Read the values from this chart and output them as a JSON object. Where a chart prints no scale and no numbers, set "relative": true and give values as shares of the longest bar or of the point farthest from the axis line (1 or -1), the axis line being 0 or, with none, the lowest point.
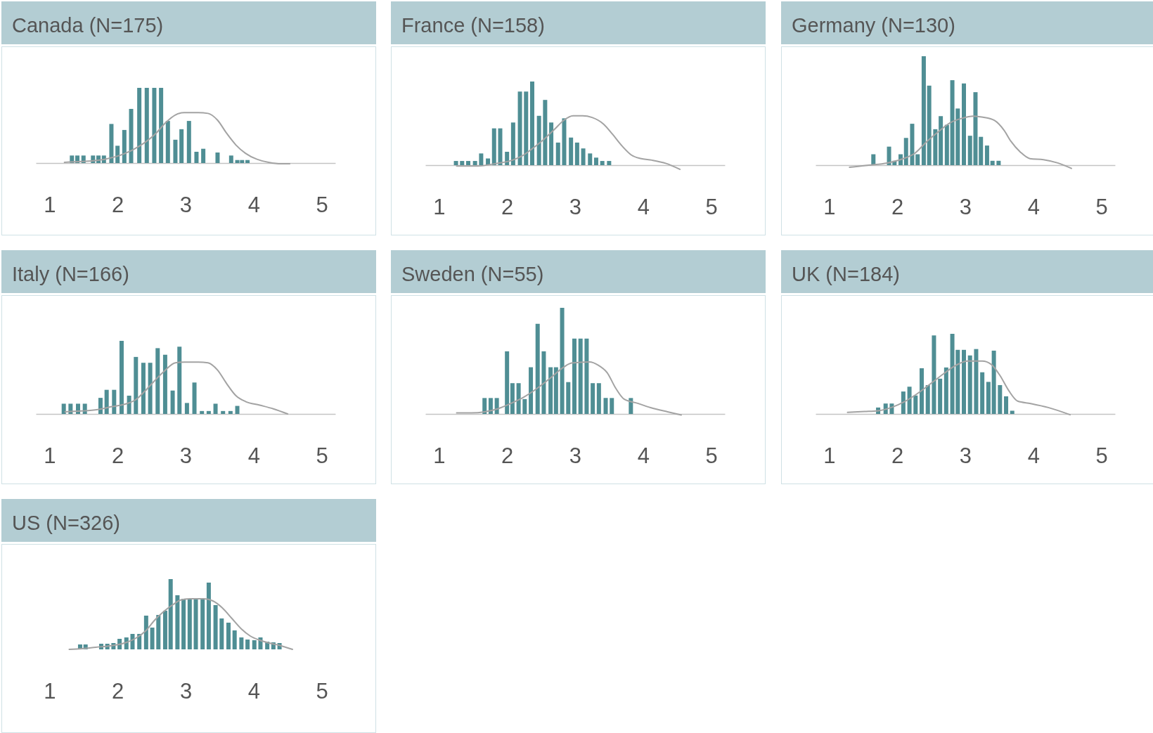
{
  "chart_data": [
    {
      "type": "bar",
      "title": "Canada (N=175)",
      "relative": true,
      "xlim": [
        0.8,
        5.2
      ],
      "xticks": [
        1,
        2,
        3,
        4,
        5
      ],
      "series": [
        {
          "color": "#4f8e94",
          "x": [
            1.33,
            1.41,
            1.5,
            1.64,
            1.72,
            1.8,
            1.91,
            2.0,
            2.1,
            2.2,
            2.32,
            2.43,
            2.54,
            2.64,
            2.74,
            2.85,
            2.94,
            3.05,
            3.16,
            3.26,
            3.47,
            3.67,
            3.76,
            3.83,
            3.91
          ],
          "values": [
            0.1,
            0.1,
            0.1,
            0.1,
            0.1,
            0.1,
            0.52,
            0.23,
            0.44,
            0.72,
            1,
            1,
            1,
            1,
            0.56,
            0.31,
            0.45,
            0.56,
            0.15,
            0.19,
            0.14,
            0.1,
            0.04,
            0.04,
            0.04
          ]
        },
        {
          "type": "line",
          "color": "#a3a3a3",
          "x": [
            1.22,
            1.47,
            1.81,
            2.09,
            2.33,
            2.57,
            2.71,
            2.85,
            2.98,
            3.19,
            3.33,
            3.47,
            3.6,
            3.74,
            3.88,
            4.05,
            4.22,
            4.4,
            4.53
          ],
          "values": [
            0.01,
            0.02,
            0.05,
            0.12,
            0.23,
            0.4,
            0.54,
            0.64,
            0.67,
            0.67,
            0.66,
            0.57,
            0.4,
            0.24,
            0.13,
            0.05,
            0.01,
            -0.01,
            -0.01
          ]
        }
      ]
    },
    {
      "type": "bar",
      "title": "France (N=158)",
      "relative": true,
      "xlim": [
        0.8,
        5.2
      ],
      "xticks": [
        1,
        2,
        3,
        4,
        5
      ],
      "series": [
        {
          "color": "#4f8e94",
          "x": [
            1.25,
            1.34,
            1.43,
            1.53,
            1.62,
            1.72,
            1.81,
            1.9,
            2.0,
            2.09,
            2.19,
            2.28,
            2.37,
            2.47,
            2.56,
            2.65,
            2.75,
            2.84,
            2.94,
            3.03,
            3.12,
            3.22,
            3.31,
            3.4,
            3.5
          ],
          "values": [
            0.05,
            0.05,
            0.05,
            0.05,
            0.14,
            0.08,
            0.44,
            0.44,
            0.16,
            0.51,
            0.88,
            0.88,
            1,
            0.59,
            0.78,
            0.51,
            0.27,
            0.56,
            0.33,
            0.27,
            0.2,
            0.14,
            0.09,
            0.05,
            0.05
          ]
        },
        {
          "type": "line",
          "color": "#a3a3a3",
          "x": [
            1.26,
            1.57,
            1.84,
            2.08,
            2.22,
            2.36,
            2.53,
            2.7,
            2.84,
            2.97,
            3.11,
            3.25,
            3.42,
            3.55,
            3.69,
            3.83,
            3.96,
            4.13,
            4.34,
            4.54
          ],
          "values": [
            -0.01,
            -0.01,
            0.02,
            0.06,
            0.11,
            0.19,
            0.3,
            0.43,
            0.54,
            0.59,
            0.59,
            0.57,
            0.49,
            0.37,
            0.23,
            0.12,
            0.08,
            0.06,
            0.02,
            -0.05
          ]
        }
      ]
    },
    {
      "type": "bar",
      "title": "Germany (N=130)",
      "relative": true,
      "xlim": [
        0.8,
        5.2
      ],
      "xticks": [
        1,
        2,
        3,
        4,
        5
      ],
      "series": [
        {
          "color": "#4f8e94",
          "x": [
            1.65,
            1.88,
            1.96,
            2.05,
            2.13,
            2.22,
            2.3,
            2.39,
            2.47,
            2.56,
            2.64,
            2.73,
            2.81,
            2.89,
            2.98,
            3.07,
            3.15,
            3.23,
            3.32,
            3.4,
            3.49
          ],
          "values": [
            0.1,
            0.17,
            0.04,
            0.1,
            0.25,
            0.38,
            0.1,
            1,
            0.73,
            0.33,
            0.45,
            0.37,
            0.78,
            0.52,
            0.75,
            0.27,
            0.67,
            0.26,
            0.18,
            0.04,
            0.04
          ]
        },
        {
          "type": "line",
          "color": "#a3a3a3",
          "x": [
            1.3,
            1.58,
            1.85,
            2.09,
            2.26,
            2.44,
            2.61,
            2.78,
            2.95,
            3.12,
            3.26,
            3.43,
            3.57,
            3.67,
            3.81,
            3.95,
            4.15,
            4.36,
            4.56
          ],
          "values": [
            -0.02,
            0,
            0.02,
            0.06,
            0.11,
            0.22,
            0.31,
            0.39,
            0.43,
            0.45,
            0.44,
            0.41,
            0.32,
            0.22,
            0.12,
            0.06,
            0.05,
            0.02,
            -0.03
          ]
        }
      ]
    },
    {
      "type": "bar",
      "title": "Italy (N=166)",
      "relative": true,
      "xlim": [
        0.8,
        5.2
      ],
      "xticks": [
        1,
        2,
        3,
        4,
        5
      ],
      "series": [
        {
          "color": "#4f8e94",
          "x": [
            1.21,
            1.31,
            1.42,
            1.52,
            1.75,
            1.84,
            1.95,
            2.06,
            2.17,
            2.27,
            2.38,
            2.48,
            2.59,
            2.7,
            2.81,
            2.91,
            3.02,
            3.13,
            3.24,
            3.34,
            3.44,
            3.55,
            3.66,
            3.76
          ],
          "values": [
            0.14,
            0.14,
            0.14,
            0.14,
            0.22,
            0.33,
            0.33,
            1,
            0.25,
            0.78,
            0.7,
            0.7,
            0.9,
            0.81,
            0.32,
            0.92,
            0.15,
            0.43,
            0.04,
            0.04,
            0.14,
            0.04,
            0.04,
            0.11
          ]
        },
        {
          "type": "line",
          "color": "#a3a3a3",
          "x": [
            1.23,
            1.47,
            1.71,
            1.92,
            2.13,
            2.26,
            2.4,
            2.54,
            2.68,
            2.85,
            2.99,
            3.19,
            3.33,
            3.47,
            3.6,
            3.74,
            3.88,
            4.09,
            4.29,
            4.5
          ],
          "values": [
            0.03,
            0.04,
            0.06,
            0.1,
            0.14,
            0.19,
            0.31,
            0.45,
            0.58,
            0.7,
            0.71,
            0.71,
            0.7,
            0.6,
            0.42,
            0.25,
            0.17,
            0.12,
            0.07,
            0
          ]
        }
      ]
    },
    {
      "type": "bar",
      "title": "Sweden (N=55)",
      "relative": true,
      "xlim": [
        0.8,
        5.2
      ],
      "xticks": [
        1,
        2,
        3,
        4,
        5
      ],
      "series": [
        {
          "color": "#4f8e94",
          "x": [
            1.67,
            1.76,
            1.85,
            2.0,
            2.08,
            2.17,
            2.26,
            2.35,
            2.45,
            2.54,
            2.64,
            2.72,
            2.81,
            2.9,
            2.99,
            3.08,
            3.17,
            3.26,
            3.35,
            3.45,
            3.54,
            3.82
          ],
          "values": [
            0.15,
            0.15,
            0.15,
            0.59,
            0.29,
            0.29,
            0.14,
            0.44,
            0.85,
            0.59,
            0.44,
            0.44,
            1,
            0.3,
            0.71,
            0.71,
            0.71,
            0.29,
            0.29,
            0.15,
            0.15,
            0.15
          ]
        },
        {
          "type": "line",
          "color": "#a3a3a3",
          "x": [
            1.26,
            1.48,
            1.67,
            1.87,
            2.06,
            2.25,
            2.44,
            2.64,
            2.83,
            2.95,
            3.21,
            3.34,
            3.47,
            3.6,
            3.72,
            3.92,
            4.11,
            4.36,
            4.56
          ],
          "values": [
            0.01,
            0.01,
            0.02,
            0.05,
            0.1,
            0.16,
            0.24,
            0.34,
            0.44,
            0.48,
            0.49,
            0.46,
            0.39,
            0.24,
            0.14,
            0.1,
            0.06,
            0.02,
            -0.01
          ]
        }
      ]
    },
    {
      "type": "bar",
      "title": "UK (N=184)",
      "relative": true,
      "xlim": [
        0.8,
        5.2
      ],
      "xticks": [
        1,
        2,
        3,
        4,
        5
      ],
      "series": [
        {
          "color": "#4f8e94",
          "x": [
            1.72,
            1.83,
            1.92,
            2.09,
            2.18,
            2.27,
            2.36,
            2.45,
            2.54,
            2.63,
            2.72,
            2.81,
            2.89,
            2.98,
            3.07,
            3.16,
            3.25,
            3.34,
            3.42,
            3.51,
            3.6,
            3.69
          ],
          "values": [
            0.08,
            0.13,
            0.13,
            0.28,
            0.34,
            0.23,
            0.57,
            0.36,
            0.98,
            0.44,
            0.58,
            1,
            0.8,
            0.8,
            0.73,
            0.81,
            0.52,
            0.4,
            0.79,
            0.36,
            0.22,
            0.04
          ]
        },
        {
          "type": "line",
          "color": "#a3a3a3",
          "x": [
            1.27,
            1.52,
            1.72,
            1.91,
            2.1,
            2.29,
            2.48,
            2.68,
            2.87,
            3.03,
            3.25,
            3.38,
            3.51,
            3.64,
            3.77,
            3.96,
            4.22,
            4.54
          ],
          "values": [
            0.02,
            0.03,
            0.04,
            0.08,
            0.15,
            0.25,
            0.37,
            0.5,
            0.61,
            0.66,
            0.66,
            0.62,
            0.48,
            0.29,
            0.16,
            0.13,
            0.08,
            -0.01
          ]
        }
      ]
    },
    {
      "type": "bar",
      "title": "US (N=326)",
      "relative": true,
      "xlim": [
        1,
        5
      ],
      "xticks": [
        1,
        2,
        3,
        4,
        5
      ],
      "series": [
        {
          "color": "#4f8e94",
          "x": [
            1.45,
            1.53,
            1.76,
            1.85,
            1.94,
            2.03,
            2.13,
            2.22,
            2.32,
            2.42,
            2.51,
            2.6,
            2.7,
            2.78,
            2.88,
            2.97,
            3.06,
            3.15,
            3.25,
            3.34,
            3.44,
            3.53,
            3.63,
            3.72,
            3.82,
            3.91,
            4.01,
            4.1,
            4.2,
            4.29,
            4.38
          ],
          "values": [
            0.07,
            0.07,
            0.08,
            0.08,
            0.09,
            0.15,
            0.17,
            0.22,
            0.22,
            0.48,
            0.31,
            0.49,
            0.55,
            1,
            0.77,
            0.72,
            0.72,
            0.72,
            0.72,
            0.95,
            0.63,
            0.44,
            0.38,
            0.27,
            0.17,
            0.14,
            0.13,
            0.17,
            0.11,
            0.1,
            0.09
          ]
        },
        {
          "type": "line",
          "color": "#a3a3a3",
          "x": [
            1.29,
            1.48,
            1.68,
            1.89,
            2.1,
            2.27,
            2.41,
            2.54,
            2.68,
            2.82,
            2.92,
            3.06,
            3.27,
            3.4,
            3.54,
            3.68,
            3.82,
            3.95,
            4.09,
            4.23,
            4.37,
            4.47,
            4.57
          ],
          "values": [
            0,
            0.01,
            0.03,
            0.05,
            0.09,
            0.16,
            0.26,
            0.41,
            0.54,
            0.64,
            0.7,
            0.72,
            0.72,
            0.69,
            0.59,
            0.44,
            0.29,
            0.19,
            0.13,
            0.09,
            0.06,
            0.03,
            0
          ]
        }
      ]
    }
  ]
}
